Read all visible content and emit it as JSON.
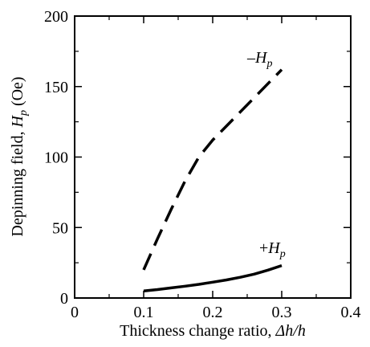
{
  "chart_data": {
    "type": "line",
    "xlabel": {
      "main": "Thickness change ratio, ",
      "symbol": "Δh/h"
    },
    "ylabel": {
      "main": "Depinning field, ",
      "symbol": "H",
      "subscript": "p",
      "unit": " (Oe)"
    },
    "xlim": [
      0,
      0.4
    ],
    "ylim": [
      0,
      200
    ],
    "xticks": [
      "0",
      "0.1",
      "0.2",
      "0.3",
      "0.4"
    ],
    "yticks": [
      "0",
      "50",
      "100",
      "150",
      "200"
    ],
    "xtick_values": [
      0,
      0.1,
      0.2,
      0.3,
      0.4
    ],
    "ytick_values": [
      0,
      50,
      100,
      150,
      200
    ],
    "grid": false,
    "legend": "none",
    "series": [
      {
        "label_sign": "–",
        "label_symbol": "H",
        "label_subscript": "p",
        "style": "dashed",
        "x": [
          0.1,
          0.12,
          0.14,
          0.16,
          0.18,
          0.2,
          0.22,
          0.24,
          0.26,
          0.28,
          0.3
        ],
        "y": [
          20,
          42,
          63,
          83,
          100,
          112,
          122,
          132,
          142,
          152,
          162
        ]
      },
      {
        "label_sign": "+",
        "label_symbol": "H",
        "label_subscript": "p",
        "style": "solid",
        "x": [
          0.1,
          0.12,
          0.14,
          0.16,
          0.18,
          0.2,
          0.22,
          0.24,
          0.26,
          0.28,
          0.3
        ],
        "y": [
          5,
          6,
          7.2,
          8.4,
          9.7,
          11.2,
          12.8,
          14.7,
          16.9,
          19.8,
          23
        ]
      }
    ]
  }
}
